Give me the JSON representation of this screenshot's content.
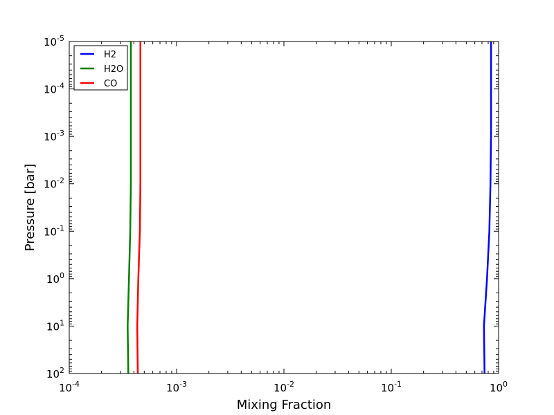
{
  "chart_data": {
    "type": "line",
    "xlabel": "Mixing Fraction",
    "ylabel": "Pressure [bar]",
    "xscale": "log",
    "yscale": "log",
    "yaxis_inverted": true,
    "xlim": [
      0.0001,
      1
    ],
    "ylim": [
      100,
      1e-05
    ],
    "grid": false,
    "legend_position": "top-left",
    "x_ticks": [
      {
        "base": "10",
        "exp": "-4"
      },
      {
        "base": "10",
        "exp": "-3"
      },
      {
        "base": "10",
        "exp": "-2"
      },
      {
        "base": "10",
        "exp": "-1"
      },
      {
        "base": "10",
        "exp": "0"
      }
    ],
    "y_ticks": [
      {
        "base": "10",
        "exp": "-5"
      },
      {
        "base": "10",
        "exp": "-4"
      },
      {
        "base": "10",
        "exp": "-3"
      },
      {
        "base": "10",
        "exp": "-2"
      },
      {
        "base": "10",
        "exp": "-1"
      },
      {
        "base": "10",
        "exp": "0"
      },
      {
        "base": "10",
        "exp": "1"
      },
      {
        "base": "10",
        "exp": "2"
      }
    ],
    "series": [
      {
        "name": "H2",
        "color": "#0000ff",
        "points": [
          [
            0.85,
            1e-05
          ],
          [
            0.85,
            0.001
          ],
          [
            0.84,
            0.01
          ],
          [
            0.82,
            0.1
          ],
          [
            0.78,
            1
          ],
          [
            0.73,
            10
          ],
          [
            0.74,
            100
          ]
        ]
      },
      {
        "name": "H2O",
        "color": "#008000",
        "points": [
          [
            0.000375,
            1e-05
          ],
          [
            0.000375,
            0.001
          ],
          [
            0.000375,
            0.01
          ],
          [
            0.00037,
            0.1
          ],
          [
            0.00036,
            1
          ],
          [
            0.00035,
            10
          ],
          [
            0.000355,
            100
          ]
        ]
      },
      {
        "name": "CO",
        "color": "#ff0000",
        "points": [
          [
            0.00046,
            1e-05
          ],
          [
            0.00046,
            0.001
          ],
          [
            0.00046,
            0.01
          ],
          [
            0.000455,
            0.1
          ],
          [
            0.00044,
            1
          ],
          [
            0.00043,
            10
          ],
          [
            0.000435,
            100
          ]
        ]
      }
    ]
  }
}
